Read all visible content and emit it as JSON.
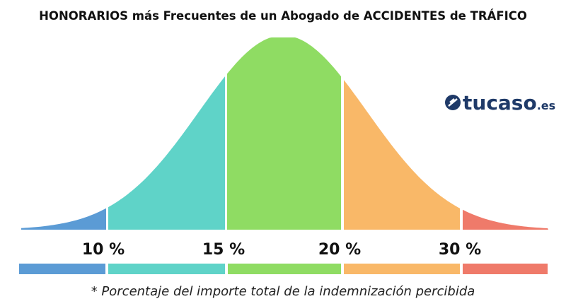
{
  "title": "HONORARIOS más Frecuentes de un Abogado de ACCIDENTES de TRÁFICO",
  "logo": {
    "name": "tucaso",
    "suffix": ".es"
  },
  "labels": [
    "10 %",
    "15 %",
    "20 %",
    "30 %"
  ],
  "footnote": "* Porcentaje del importe total de la indemnización percibida"
}
